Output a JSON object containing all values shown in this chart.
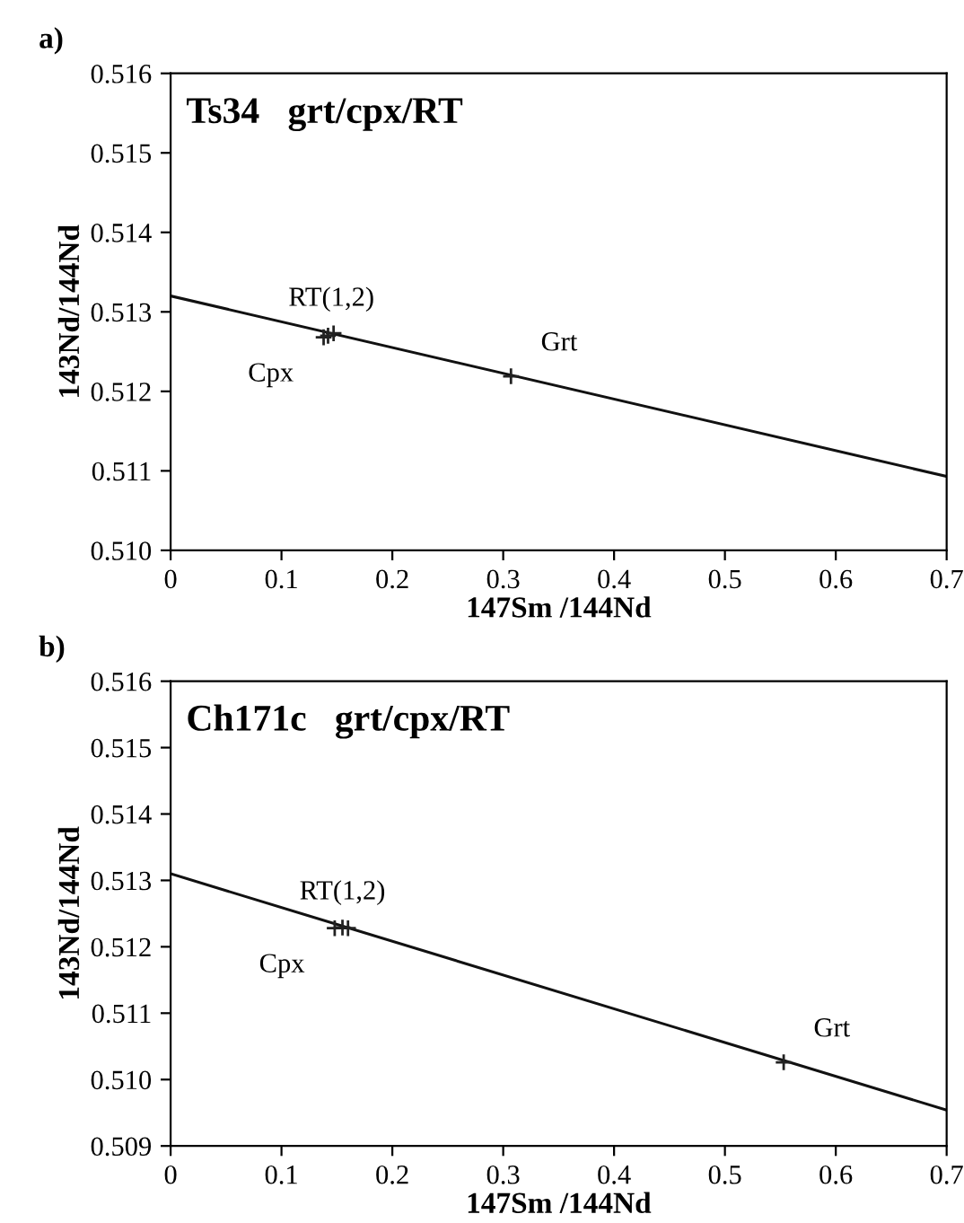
{
  "chart_data": [
    {
      "type": "scatter",
      "title": "a)",
      "subtitle": "Ts34   grt/cpx/RT",
      "xlabel": "147Sm /144Nd",
      "ylabel": "143Nd/144Nd",
      "series": [
        {
          "marker": "cross",
          "color": "#222222",
          "x": [
            0.138,
            0.142,
            0.147,
            0.307
          ],
          "values": [
            0.51268,
            0.5127,
            0.51273,
            0.51219
          ]
        },
        {
          "type": "line",
          "marker": "none",
          "color": "#111111",
          "x": [
            0,
            0.7
          ],
          "values": [
            0.5132,
            0.51093
          ]
        }
      ],
      "annotations": [
        {
          "text": "RT(1,2)",
          "x": 0.145,
          "y": 0.51272
        },
        {
          "text": "Cpx",
          "x": 0.138,
          "y": 0.51268
        },
        {
          "text": "Grt",
          "x": 0.307,
          "y": 0.51219
        }
      ],
      "xlim": [
        0,
        0.7
      ],
      "xticks": [
        0,
        0.1,
        0.2,
        0.3,
        0.4,
        0.5,
        0.6,
        0.7
      ],
      "ylim": [
        0.51,
        0.516
      ],
      "yticks": [
        {
          "value": 0.51,
          "label": "0.510"
        },
        {
          "value": 0.511,
          "label": "0.511"
        },
        {
          "value": 0.512,
          "label": "0.512"
        },
        {
          "value": 0.513,
          "label": "0.513"
        },
        {
          "value": 0.514,
          "label": "0.514"
        },
        {
          "value": 0.515,
          "label": "0.515"
        },
        {
          "value": 0.516,
          "label": "0.516"
        }
      ]
    },
    {
      "type": "scatter",
      "title": "b)",
      "subtitle": "Ch171c   grt/cpx/RT",
      "xlabel": "147Sm /144Nd",
      "ylabel": "143Nd/144Nd",
      "series": [
        {
          "marker": "cross",
          "color": "#222222",
          "x": [
            0.148,
            0.155,
            0.16,
            0.553
          ],
          "values": [
            0.51228,
            0.51229,
            0.51228,
            0.51026
          ]
        },
        {
          "type": "line",
          "marker": "none",
          "color": "#111111",
          "x": [
            0,
            0.7
          ],
          "values": [
            0.5131,
            0.50954
          ]
        }
      ],
      "annotations": [
        {
          "text": "RT(1,2)",
          "x": 0.155,
          "y": 0.51229
        },
        {
          "text": "Cpx",
          "x": 0.148,
          "y": 0.51228
        },
        {
          "text": "Grt",
          "x": 0.553,
          "y": 0.51026
        }
      ],
      "xlim": [
        0,
        0.7
      ],
      "xticks": [
        0,
        0.1,
        0.2,
        0.3,
        0.4,
        0.5,
        0.6,
        0.7
      ],
      "ylim": [
        0.509,
        0.516
      ],
      "yticks": [
        {
          "value": 0.509,
          "label": "0.509"
        },
        {
          "value": 0.51,
          "label": "0.510"
        },
        {
          "value": 0.511,
          "label": "0.511"
        },
        {
          "value": 0.512,
          "label": "0.512"
        },
        {
          "value": 0.513,
          "label": "0.513"
        },
        {
          "value": 0.514,
          "label": "0.514"
        },
        {
          "value": 0.515,
          "label": "0.515"
        },
        {
          "value": 0.516,
          "label": "0.516"
        }
      ]
    }
  ]
}
